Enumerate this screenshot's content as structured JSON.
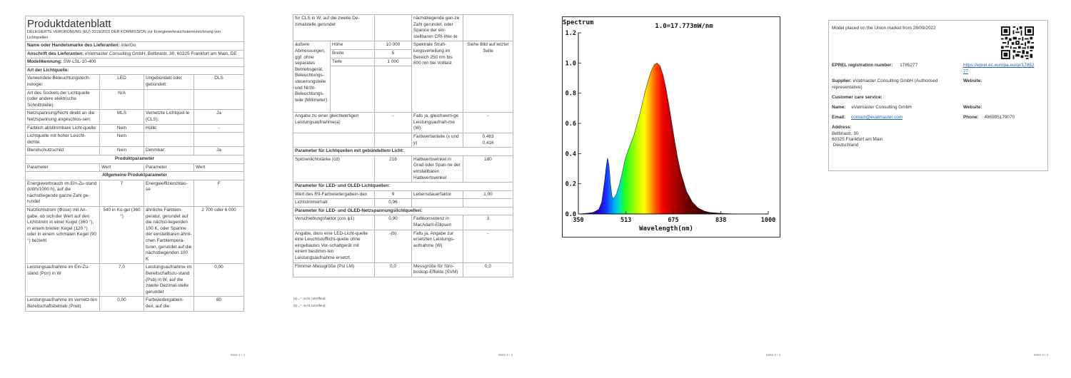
{
  "page1": {
    "title": "Produktdatenblatt",
    "regulation": "DELEGIERTE VERORDNUNG (EU) 2019/2015 DER KOMMISSION zur Energieverbrauchskennzeichnung von Lichtquellen",
    "supplier_name_label": "Name oder Handelsmarke des Lieferanten:",
    "supplier_name": "interGo",
    "address_label": "Anschrift des Lieferanten:",
    "address": "eVatmaster Consulting GmbH, Bettinastr. 30, 60325 Frankfurt am Main, DE",
    "model_label": "Modellkennung:",
    "model": "SW-LSL-10-400",
    "type_label": "Art der Lichtquelle:",
    "rows_a": [
      [
        "Verwendete Beleuchtungstech-nologie:",
        "LED",
        "Ungebündelt oder gebündelt:",
        "DLS"
      ],
      [
        "Art des Sockels der Lichtquelle (oder andere elektrische Schnittstelle)",
        "N/A",
        "",
        ""
      ],
      [
        "Netzspannung/Nicht direkt an die Netzspannung angeschlos-sen:",
        "MLS",
        "Vernetzte Lichtquel-le (CLS):",
        "Ja"
      ],
      [
        "Farblich abstimmbare Licht-quelle:",
        "Nein",
        "Hülle:",
        "-"
      ],
      [
        "Lichtquelle mit hoher Leucht-dichte:",
        "Nein",
        "",
        ""
      ],
      [
        "Blendschutzschild:",
        "Nein",
        "Dimmbar:",
        "Ja"
      ]
    ],
    "product_params": "Produktparameter",
    "param_header": [
      "Parameter",
      "Wert",
      "Parameter",
      "Wert"
    ],
    "general_params": "Allgemeine Produktparameter",
    "rows_b": [
      [
        "Energieverbrauch im Ein-Zu-stand (kWh/1000 h), auf die nächstliegende ganze Zahl ge-rundet",
        "7",
        "Energieeffizienzklas-se",
        "F"
      ],
      [
        "Nutzlichtstrom (Φuse) mit An-gabe, ob sich der Wert auf den Lichtstrom in einer Kugel (360 °), in einem breiten Kegel (120 °) oder in einem schmalen Kegel (90 °) bezieht",
        "540 in Ku-gel (360 °)",
        "ähnliche Farbtem-peratur, gerundet auf die nächst-liegenden 100 K, oder Spanne der einstellbaren ähnli-chen Farbtempera-turen, gerundet auf die nächstliegenden 100 K",
        "2 700 oder 6 000"
      ],
      [
        "Leistungsaufnahme im Ein-Zu-stand (Pon) in W",
        "7,0",
        "Leistungsaufnahme im Bereitschaftszu-stand (Psb) in W, auf die zweite Dezimal-stelle gerundet",
        "0,00"
      ],
      [
        "Leistungsaufnahme im vernetz-ten Bereitschaftsbetrieb (Pnet)",
        "0,00",
        "Farbwiedergabein-dex, auf die",
        "80"
      ]
    ],
    "footer": "Seite 1 / 4"
  },
  "page2": {
    "rows_a": [
      [
        "für CLS in W, auf die zweite De-zimalstelle gerundet",
        "",
        "nächstliegende gan-ze Zahl gerundet, oder Spanne der ein-stellbaren CRI-Wer-te",
        ""
      ]
    ],
    "outer_dims_label": "äußere Abmessungen, ggf. ohne separates Betriebsgerät, Beleuchtungs-steuerungsteile und Nicht-Beleuchtungs-teile (Millimeter)",
    "dims": [
      [
        "Höhe",
        "10 000"
      ],
      [
        "Breite",
        "5"
      ],
      [
        "Tiefe",
        "1 000"
      ]
    ],
    "spectral_label": "Spektrale Strah-lungsverteilung im Bereich 250 nm bis 800 nm bei Volllast",
    "spectral_value": "Siehe Bild auf letzter Seite",
    "rows_b": [
      [
        "Angabe zu einer gleichwertigen Leistungsaufnahme(a)",
        "-",
        "Falls ja, gleichwerti-ge Leistungsaufnah-me (W)",
        "-"
      ],
      [
        "",
        "",
        "Farbwertanteile (x und y)",
        "0,463\n0,416"
      ]
    ],
    "directional_header": "Parameter für Lichtquellen mit gebündeltem Licht:",
    "rows_c": [
      [
        "Spitzenlichtstärke (cd)",
        "216",
        "Halbwertswinkel in Grad oder Span-ne der einstellbaren Halbwertswinkel",
        "180"
      ]
    ],
    "led_header": "Parameter für LED- und OLED-Lichtquellen:",
    "rows_d": [
      [
        "Wert des R9-Farbwiedergabein-dex",
        "9",
        "Lebensdauerfaktor",
        "1,00"
      ],
      [
        "Lichtstromerhalt",
        "0,96",
        "",
        ""
      ]
    ],
    "led_mains_header": "Parameter für LED- und OLED-Netzspannungslichtquellen:",
    "rows_e": [
      [
        "Verschiebungsfaktor (cos φ1)",
        "0,90",
        "Farbkonsistenz in MacAdam-Ellipsen",
        "3"
      ],
      [
        "Angabe, dass eine LED-Licht-quelle eine Leuchtstofflicht-quelle ohne eingebautes Vor-schaltgerät mit einem bestimm-ten Leistungsaufnahme ersetzt.",
        "-(b)",
        "Falls ja, Angabe zur ersetzten Leistungs-aufnahme (W)",
        "-"
      ],
      [
        "Flimmer-Messgröße (Pst LM)",
        "0,0",
        "Messgröße für Stro-boskop-Effekte (SVM)",
        "0,0"
      ]
    ],
    "footnote_a": "(a) „-“: nicht zutreffend;",
    "footnote_b": "(b) „-“: nicht zutreffend;",
    "footer": "Seite 2 / 4"
  },
  "chart_data": {
    "type": "line",
    "title": "1.0=17.773mW/nm",
    "header": "Spectrum",
    "xlabel": "Wavelength(nm)",
    "ylabel": "",
    "xlim": [
      350,
      1000
    ],
    "ylim": [
      0,
      1.2
    ],
    "x_ticks": [
      "350",
      "513",
      "675",
      "838",
      "1000"
    ],
    "y_ticks": [
      "0.0",
      "0.2",
      "0.4",
      "0.6",
      "0.8",
      "1.0",
      "1.2"
    ],
    "grid": false,
    "series": [
      {
        "x": [
          350,
          380,
          400,
          420,
          430,
          440,
          445,
          450,
          455,
          460,
          465,
          470,
          480,
          490,
          500,
          510,
          520,
          530,
          540,
          550,
          560,
          570,
          580,
          590,
          600,
          610,
          620,
          630,
          640,
          650,
          660,
          670,
          680,
          690,
          700,
          720,
          740,
          760,
          780,
          800,
          850,
          900,
          1000
        ],
        "values": [
          0.0,
          0.005,
          0.01,
          0.03,
          0.08,
          0.22,
          0.31,
          0.37,
          0.32,
          0.2,
          0.12,
          0.1,
          0.13,
          0.19,
          0.27,
          0.36,
          0.42,
          0.47,
          0.52,
          0.59,
          0.66,
          0.74,
          0.82,
          0.89,
          0.95,
          0.99,
          1.0,
          0.98,
          0.92,
          0.83,
          0.72,
          0.6,
          0.48,
          0.37,
          0.28,
          0.15,
          0.08,
          0.04,
          0.02,
          0.01,
          0.003,
          0.0,
          0.0
        ]
      }
    ]
  },
  "page3": {
    "footer": "Seite 3 / 4"
  },
  "page4": {
    "placed": "Model placed on the Union market from 28/09/2022",
    "eprel_label": "EPREL registration number:",
    "eprel_number": "1785277",
    "eprel_url": "https://eprel.ec.europa.eu/qr/1785277",
    "supplier_label": "Supplier:",
    "supplier": "eVatmaster Consulting GmbH (Authorised representative)",
    "website_label": "Website:",
    "customer_care": "Customer care service:",
    "name_label": "Name:",
    "name": "eVatmaster Consulting GmbH",
    "website2_label": "Website:",
    "email_label": "Email:",
    "email": "contact@evatmaster.com",
    "phone_label": "Phone:",
    "phone": "496995179070",
    "address_label": "Address:",
    "address_lines": [
      "Bettinastr. 30",
      "60325 Frankfurt am Main",
      " Deutschland"
    ],
    "footer": "Seite 4 / 4"
  }
}
